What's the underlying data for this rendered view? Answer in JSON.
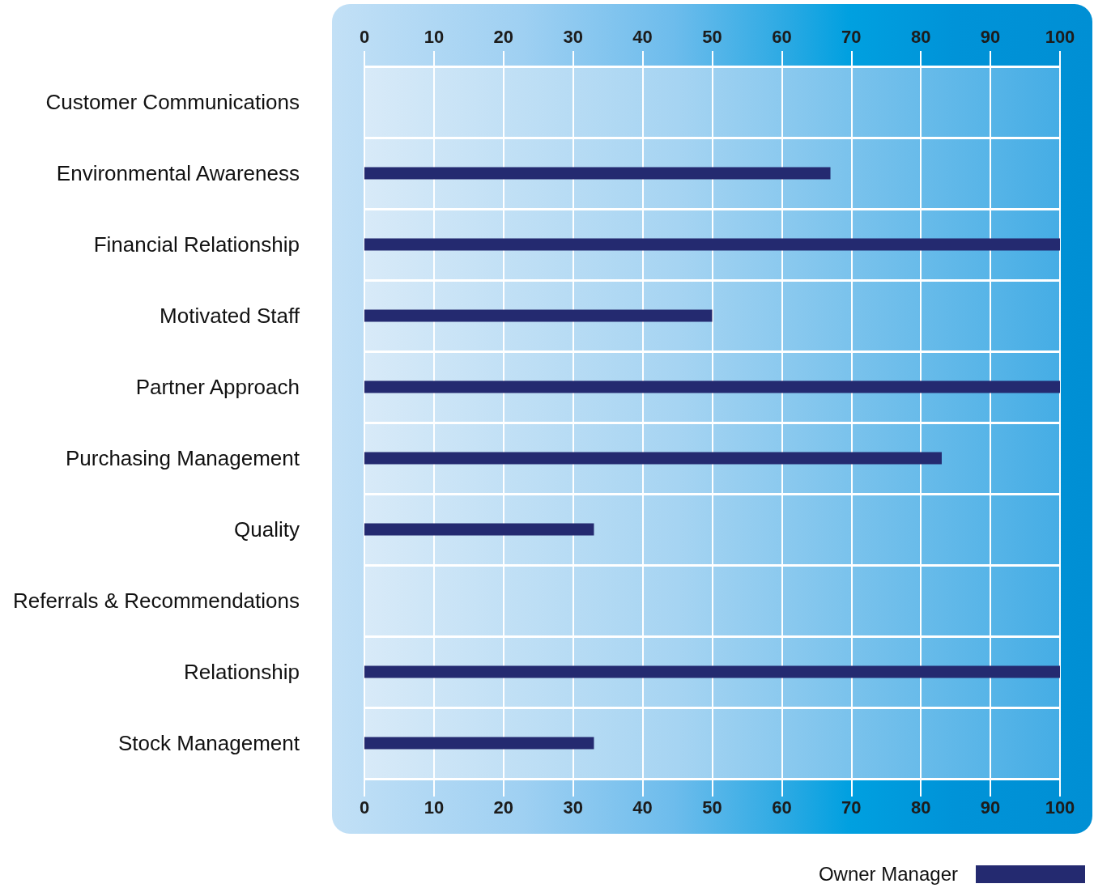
{
  "chart_data": {
    "type": "bar",
    "orientation": "horizontal",
    "categories": [
      "Customer Communications",
      "Environmental Awareness",
      "Financial Relationship",
      "Motivated Staff",
      "Partner Approach",
      "Purchasing Management",
      "Quality",
      "Referrals & Recommendations",
      "Relationship",
      "Stock Management"
    ],
    "series": [
      {
        "name": "Owner Manager",
        "color": "#242a70",
        "values": [
          null,
          67,
          100,
          50,
          100,
          83,
          33,
          null,
          100,
          33
        ]
      }
    ],
    "xlim": [
      0,
      100
    ],
    "xticks": [
      0,
      10,
      20,
      30,
      40,
      50,
      60,
      70,
      80,
      90,
      100
    ],
    "x2lim": [
      0,
      100
    ],
    "x2ticks": [
      0,
      10,
      20,
      30,
      40,
      50,
      60,
      70,
      80,
      90,
      100
    ],
    "grid": true,
    "legend": "bottom right"
  }
}
